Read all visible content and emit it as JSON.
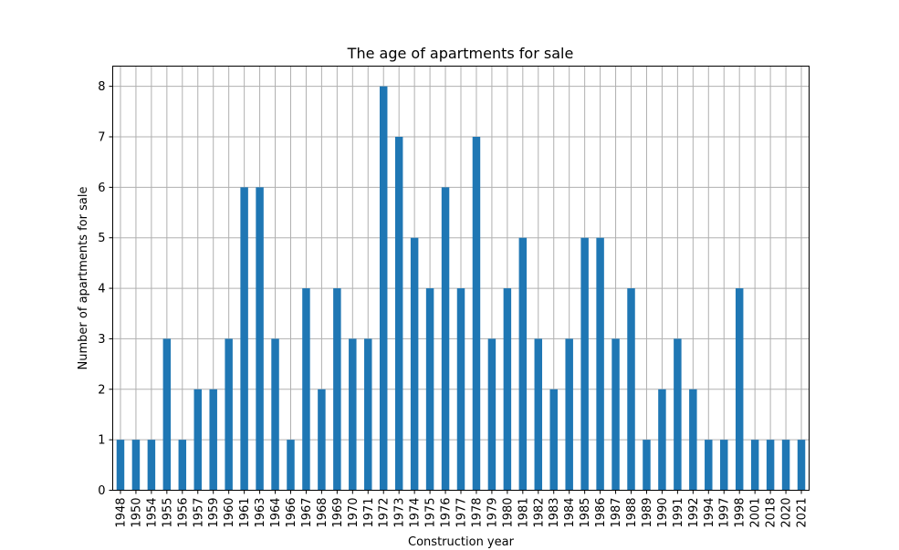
{
  "chart_data": {
    "type": "bar",
    "title": "The age of apartments for sale",
    "xlabel": "Construction year",
    "ylabel": "Number of apartments for sale",
    "categories": [
      "1948",
      "1950",
      "1954",
      "1955",
      "1956",
      "1957",
      "1959",
      "1960",
      "1961",
      "1963",
      "1964",
      "1966",
      "1967",
      "1968",
      "1969",
      "1970",
      "1971",
      "1972",
      "1973",
      "1974",
      "1975",
      "1976",
      "1977",
      "1978",
      "1979",
      "1980",
      "1981",
      "1982",
      "1983",
      "1984",
      "1985",
      "1986",
      "1987",
      "1988",
      "1989",
      "1990",
      "1991",
      "1992",
      "1994",
      "1997",
      "1998",
      "2001",
      "2018",
      "2020",
      "2021"
    ],
    "values": [
      1,
      1,
      1,
      3,
      1,
      2,
      2,
      3,
      6,
      6,
      3,
      1,
      4,
      2,
      4,
      3,
      3,
      8,
      7,
      5,
      4,
      6,
      4,
      7,
      3,
      4,
      5,
      3,
      2,
      3,
      5,
      5,
      3,
      4,
      1,
      2,
      3,
      2,
      1,
      1,
      4,
      1,
      1,
      1,
      1
    ],
    "yticks": [
      "0",
      "1",
      "2",
      "3",
      "4",
      "5",
      "6",
      "7",
      "8"
    ],
    "ylim": [
      0,
      8.4
    ],
    "grid": true,
    "bar_color": "#1f77b4",
    "grid_color": "#b0b0b0"
  }
}
